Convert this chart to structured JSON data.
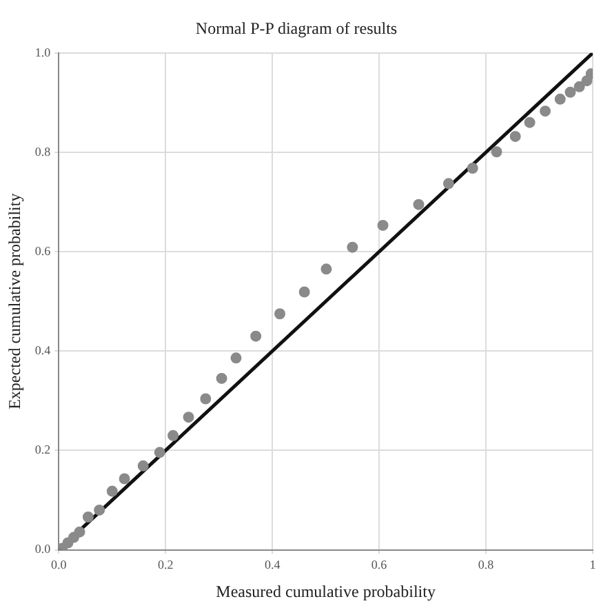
{
  "chart_data": {
    "type": "scatter",
    "title": "Normal P-P diagram of results",
    "xlabel": "Measured cumulative probability",
    "ylabel": "Expected cumulative probability",
    "series": [
      {
        "color": "#8a8a8a",
        "marker": "circle",
        "x": [
          0.006,
          0.017,
          0.028,
          0.039,
          0.055,
          0.076,
          0.1,
          0.123,
          0.158,
          0.189,
          0.214,
          0.243,
          0.275,
          0.305,
          0.332,
          0.369,
          0.414,
          0.46,
          0.501,
          0.55,
          0.607,
          0.674,
          0.73,
          0.775,
          0.82,
          0.855,
          0.882,
          0.911,
          0.939,
          0.958,
          0.975,
          0.989,
          0.997
        ],
        "values": [
          0.003,
          0.014,
          0.025,
          0.036,
          0.066,
          0.08,
          0.118,
          0.143,
          0.169,
          0.196,
          0.23,
          0.267,
          0.304,
          0.345,
          0.386,
          0.43,
          0.475,
          0.519,
          0.565,
          0.609,
          0.653,
          0.695,
          0.737,
          0.768,
          0.801,
          0.832,
          0.86,
          0.883,
          0.907,
          0.921,
          0.932,
          0.944,
          0.958
        ]
      },
      {
        "type": "line",
        "marker": "none",
        "color": "#111111",
        "x": [
          0,
          1
        ],
        "values": [
          0,
          1
        ]
      }
    ],
    "xlim": [
      0,
      1
    ],
    "ylim": [
      0,
      1
    ],
    "xticks": [
      {
        "value": 0,
        "label": "0.0"
      },
      0.2,
      0.4,
      0.6,
      0.8,
      {
        "value": 1,
        "label": "1"
      }
    ],
    "yticks": [
      {
        "value": 0,
        "label": "0.0"
      },
      0.2,
      0.4,
      0.6,
      0.8,
      {
        "value": 1,
        "label": "1.0"
      }
    ],
    "grid": true,
    "legend": false
  }
}
